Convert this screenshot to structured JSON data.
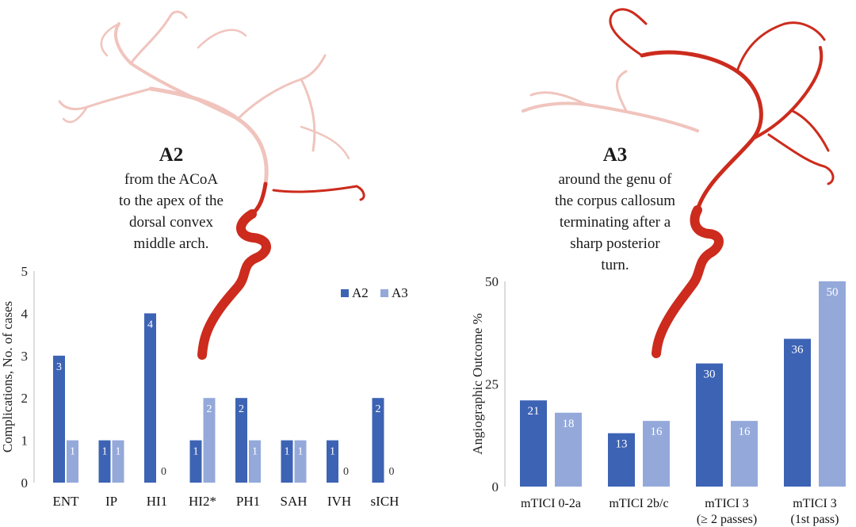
{
  "colors": {
    "a2": "#3d63b4",
    "a3": "#94a9da",
    "vessel_dark": "#cc2b1d",
    "vessel_light": "#f0c4bd",
    "axis": "#b8b8b8"
  },
  "left": {
    "segment_title": "A2",
    "segment_lines": [
      "from the ACoA",
      "to the apex of the",
      "dorsal convex",
      "middle arch."
    ]
  },
  "right": {
    "segment_title": "A3",
    "segment_lines": [
      "around the genu of",
      "the corpus callosum",
      "terminating after a",
      "sharp posterior",
      "turn."
    ]
  },
  "chart_data": [
    {
      "type": "bar",
      "categories": [
        "ENT",
        "IP",
        "HI1",
        "HI2*",
        "PH1",
        "SAH",
        "IVH",
        "sICH"
      ],
      "series": [
        {
          "name": "A2",
          "values": [
            3,
            1,
            4,
            1,
            2,
            1,
            1,
            2
          ]
        },
        {
          "name": "A3",
          "values": [
            1,
            1,
            0,
            2,
            1,
            1,
            0,
            0
          ]
        }
      ],
      "ylabel": "Complications, No. of cases",
      "ylim": [
        0,
        5
      ],
      "yticks": [
        0,
        1,
        2,
        3,
        4,
        5
      ],
      "legend": "top-right",
      "grid": false
    },
    {
      "type": "bar",
      "categories": [
        [
          "mTICI 0-2a"
        ],
        [
          "mTICI 2b/c"
        ],
        [
          "mTICI 3",
          "(≥ 2 passes)"
        ],
        [
          "mTICI 3",
          "(1st pass)"
        ]
      ],
      "series": [
        {
          "name": "A2",
          "values": [
            21,
            13,
            30,
            36
          ]
        },
        {
          "name": "A3",
          "values": [
            18,
            16,
            16,
            50
          ]
        }
      ],
      "ylabel": "Angiographic Outcome %",
      "ylim": [
        0,
        50
      ],
      "yticks": [
        0,
        25,
        50
      ],
      "legend": "none",
      "grid": false
    }
  ]
}
